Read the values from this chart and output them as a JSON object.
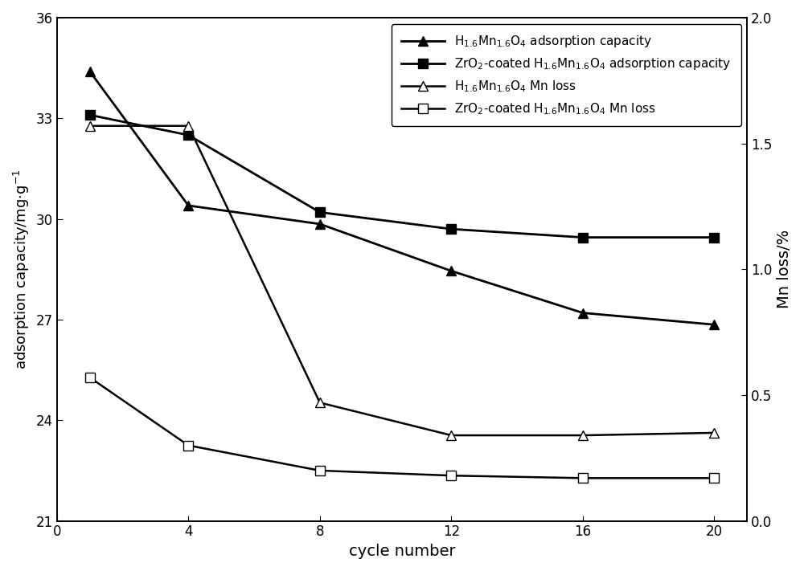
{
  "x": [
    1,
    4,
    8,
    12,
    16,
    20
  ],
  "series": [
    {
      "label": "H$_{1.6}$Mn$_{1.6}$O$_{4}$ adsorption capacity",
      "y": [
        34.4,
        30.4,
        29.85,
        28.45,
        27.2,
        26.85
      ],
      "axis": "left",
      "marker": "^",
      "filled": true,
      "linewidth": 2.0,
      "markersize": 8,
      "linestyle": "-"
    },
    {
      "label": "H$_{1.6}$Mn$_{1.6}$O$_{4}$ Mn loss",
      "y": [
        1.57,
        1.57,
        0.47,
        0.34,
        0.34,
        0.35
      ],
      "axis": "right",
      "marker": "^",
      "filled": false,
      "linewidth": 1.8,
      "markersize": 8,
      "linestyle": "-"
    },
    {
      "label": "ZrO$_2$-coated H$_{1.6}$Mn$_{1.6}$O$_{4}$ adsorption capacity",
      "y": [
        33.1,
        32.5,
        30.2,
        29.7,
        29.45,
        29.45
      ],
      "axis": "left",
      "marker": "s",
      "filled": true,
      "linewidth": 2.0,
      "markersize": 8,
      "linestyle": "-"
    },
    {
      "label": "ZrO$_2$-coated H$_{1.6}$Mn$_{1.6}$O$_{4}$ Mn loss",
      "y": [
        0.57,
        0.3,
        0.2,
        0.18,
        0.17,
        0.17
      ],
      "axis": "right",
      "marker": "s",
      "filled": false,
      "linewidth": 1.8,
      "markersize": 8,
      "linestyle": "-"
    }
  ],
  "left_ylim": [
    21,
    36
  ],
  "left_yticks": [
    21,
    24,
    27,
    30,
    33,
    36
  ],
  "right_ylim": [
    0.0,
    2.0
  ],
  "right_yticks": [
    0.0,
    0.5,
    1.0,
    1.5,
    2.0
  ],
  "xlabel": "cycle number",
  "ylabel_left": "adsorption capacity/mg·g$^{-1}$",
  "ylabel_right": "Mn loss/%",
  "xlim": [
    0,
    21
  ],
  "xticks": [
    0,
    4,
    8,
    12,
    16,
    20
  ],
  "color": "#000000",
  "background": "#ffffff",
  "legend_order": [
    0,
    2,
    1,
    3
  ],
  "figsize": [
    10.0,
    7.11
  ],
  "dpi": 100
}
